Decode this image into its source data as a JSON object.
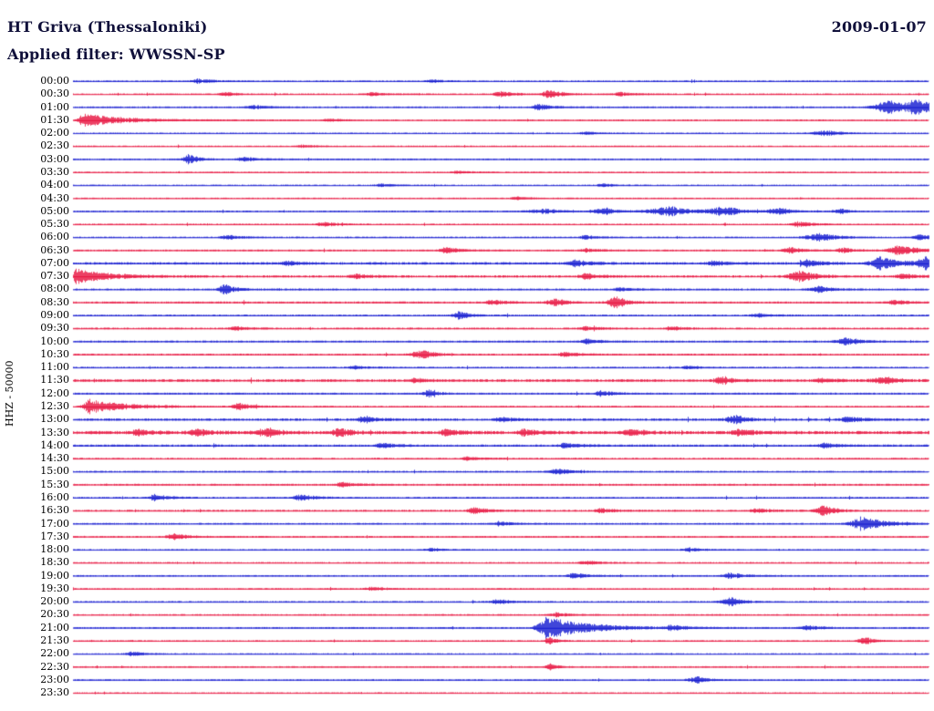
{
  "header": {
    "station_title": "HT Griva (Thessaloniki)",
    "date": "2009-01-07",
    "filter_line": "Applied filter: WWSSN-SP"
  },
  "axis": {
    "left_label": "HHZ - 50000"
  },
  "colors": {
    "blue": "#0008cc",
    "red": "#e60030",
    "header_text": "#10103a",
    "background": "#ffffff"
  },
  "chart_data": {
    "type": "line",
    "subtype": "helicorder-seismogram",
    "title": "HT Griva (Thessaloniki)",
    "date": "2009-01-07",
    "filter": "WWSSN-SP",
    "channel_scale_label": "HHZ - 50000",
    "minutes_per_row": 30,
    "rows_count": 48,
    "trace_color_pattern": [
      "blue",
      "red"
    ],
    "rows": [
      {
        "time": "00:00",
        "color": "blue",
        "noise": 1.0,
        "events": [
          {
            "x": 0.147,
            "a": 2.5
          },
          {
            "x": 0.42,
            "a": 1.5
          }
        ]
      },
      {
        "time": "00:30",
        "color": "red",
        "noise": 1.0,
        "events": [
          {
            "x": 0.18,
            "a": 2.5,
            "d": 10
          },
          {
            "x": 0.35,
            "a": 2
          },
          {
            "x": 0.5,
            "a": 3
          },
          {
            "x": 0.556,
            "a": 4.5
          },
          {
            "x": 0.64,
            "a": 2
          }
        ]
      },
      {
        "time": "01:00",
        "color": "blue",
        "noise": 1.0,
        "events": [
          {
            "x": 0.21,
            "a": 2.5
          },
          {
            "x": 0.545,
            "a": 3.5
          },
          {
            "x": 0.955,
            "a": 7,
            "r": 12,
            "d": 30
          },
          {
            "x": 0.985,
            "a": 6,
            "r": 6,
            "d": 20
          }
        ]
      },
      {
        "time": "01:30",
        "color": "red",
        "noise": 1.0,
        "events": [
          {
            "x": 0.012,
            "a": 7,
            "r": 4,
            "d": 45
          },
          {
            "x": 0.3,
            "a": 1.5
          }
        ]
      },
      {
        "time": "02:00",
        "color": "blue",
        "noise": 0.9,
        "events": [
          {
            "x": 0.6,
            "a": 1.5
          },
          {
            "x": 0.88,
            "a": 3,
            "r": 10,
            "d": 18
          }
        ]
      },
      {
        "time": "02:30",
        "color": "red",
        "noise": 0.9,
        "events": [
          {
            "x": 0.27,
            "a": 1.5
          }
        ]
      },
      {
        "time": "03:00",
        "color": "blue",
        "noise": 1.0,
        "events": [
          {
            "x": 0.135,
            "a": 5.5,
            "r": 4,
            "d": 10
          },
          {
            "x": 0.2,
            "a": 2.5
          }
        ]
      },
      {
        "time": "03:30",
        "color": "red",
        "noise": 0.9,
        "events": [
          {
            "x": 0.45,
            "a": 1.5
          }
        ]
      },
      {
        "time": "04:00",
        "color": "blue",
        "noise": 0.9,
        "events": [
          {
            "x": 0.36,
            "a": 1.5
          },
          {
            "x": 0.62,
            "a": 1.5
          }
        ]
      },
      {
        "time": "04:30",
        "color": "red",
        "noise": 0.9,
        "events": [
          {
            "x": 0.52,
            "a": 1.5
          }
        ]
      },
      {
        "time": "05:00",
        "color": "blue",
        "noise": 1.0,
        "events": [
          {
            "x": 0.555,
            "a": 2.5,
            "r": 15,
            "d": 15
          },
          {
            "x": 0.625,
            "a": 3.5,
            "r": 12,
            "d": 12
          },
          {
            "x": 0.7,
            "a": 5,
            "r": 18,
            "d": 18
          },
          {
            "x": 0.765,
            "a": 5,
            "r": 15,
            "d": 15
          },
          {
            "x": 0.83,
            "a": 3.5,
            "r": 12,
            "d": 12
          },
          {
            "x": 0.9,
            "a": 2.5,
            "r": 8,
            "d": 8
          }
        ]
      },
      {
        "time": "05:30",
        "color": "red",
        "noise": 1.0,
        "events": [
          {
            "x": 0.293,
            "a": 2.5
          },
          {
            "x": 0.848,
            "a": 3
          }
        ]
      },
      {
        "time": "06:00",
        "color": "blue",
        "noise": 1.0,
        "events": [
          {
            "x": 0.18,
            "a": 2.5
          },
          {
            "x": 0.6,
            "a": 2
          },
          {
            "x": 0.875,
            "a": 4.5,
            "r": 12,
            "d": 18
          },
          {
            "x": 0.99,
            "a": 3.5
          }
        ]
      },
      {
        "time": "06:30",
        "color": "red",
        "noise": 1.1,
        "events": [
          {
            "x": 0.437,
            "a": 3.5
          },
          {
            "x": 0.6,
            "a": 2
          },
          {
            "x": 0.837,
            "a": 3.5
          },
          {
            "x": 0.9,
            "a": 2.5
          },
          {
            "x": 0.965,
            "a": 6,
            "r": 8,
            "d": 20
          }
        ]
      },
      {
        "time": "07:00",
        "color": "blue",
        "noise": 1.7,
        "events": [
          {
            "x": 0.25,
            "a": 2
          },
          {
            "x": 0.586,
            "a": 3.5
          },
          {
            "x": 0.75,
            "a": 2.5
          },
          {
            "x": 0.858,
            "a": 4
          },
          {
            "x": 0.945,
            "a": 7,
            "r": 8,
            "d": 20
          },
          {
            "x": 0.995,
            "a": 7,
            "r": 5,
            "d": 10
          }
        ]
      },
      {
        "time": "07:30",
        "color": "red",
        "noise": 1.5,
        "events": [
          {
            "x": 0.004,
            "a": 8,
            "r": 3,
            "d": 35
          },
          {
            "x": 0.33,
            "a": 2.5
          },
          {
            "x": 0.6,
            "a": 3
          },
          {
            "x": 0.852,
            "a": 6,
            "r": 10,
            "d": 15
          },
          {
            "x": 0.97,
            "a": 3
          }
        ]
      },
      {
        "time": "08:00",
        "color": "blue",
        "noise": 1.2,
        "events": [
          {
            "x": 0.176,
            "a": 6,
            "r": 4,
            "d": 12
          },
          {
            "x": 0.64,
            "a": 2
          },
          {
            "x": 0.874,
            "a": 3.5,
            "r": 8,
            "d": 12
          }
        ]
      },
      {
        "time": "08:30",
        "color": "red",
        "noise": 1.3,
        "events": [
          {
            "x": 0.49,
            "a": 2.5
          },
          {
            "x": 0.565,
            "a": 4.5,
            "r": 7,
            "d": 10
          },
          {
            "x": 0.635,
            "a": 6.5,
            "r": 6,
            "d": 12
          },
          {
            "x": 0.96,
            "a": 2.5
          }
        ]
      },
      {
        "time": "09:00",
        "color": "blue",
        "noise": 1.2,
        "events": [
          {
            "x": 0.453,
            "a": 4.5,
            "r": 5,
            "d": 10
          },
          {
            "x": 0.8,
            "a": 2
          }
        ]
      },
      {
        "time": "09:30",
        "color": "red",
        "noise": 1.2,
        "events": [
          {
            "x": 0.19,
            "a": 2
          },
          {
            "x": 0.6,
            "a": 2.5
          },
          {
            "x": 0.7,
            "a": 2
          }
        ]
      },
      {
        "time": "10:00",
        "color": "blue",
        "noise": 1.2,
        "events": [
          {
            "x": 0.6,
            "a": 2.5
          },
          {
            "x": 0.905,
            "a": 4.5,
            "r": 8,
            "d": 14
          }
        ]
      },
      {
        "time": "10:30",
        "color": "red",
        "noise": 1.2,
        "events": [
          {
            "x": 0.41,
            "a": 4.5,
            "r": 9,
            "d": 12
          },
          {
            "x": 0.575,
            "a": 2.5
          }
        ]
      },
      {
        "time": "11:00",
        "color": "blue",
        "noise": 1.1,
        "events": [
          {
            "x": 0.33,
            "a": 1.8
          },
          {
            "x": 0.72,
            "a": 1.8
          }
        ]
      },
      {
        "time": "11:30",
        "color": "red",
        "noise": 1.8,
        "events": [
          {
            "x": 0.4,
            "a": 2
          },
          {
            "x": 0.757,
            "a": 3.5
          },
          {
            "x": 0.874,
            "a": 2.5
          },
          {
            "x": 0.95,
            "a": 3.5,
            "r": 10,
            "d": 14
          }
        ]
      },
      {
        "time": "12:00",
        "color": "blue",
        "noise": 1.2,
        "events": [
          {
            "x": 0.416,
            "a": 4.5,
            "r": 4,
            "d": 8
          },
          {
            "x": 0.618,
            "a": 3
          }
        ]
      },
      {
        "time": "12:30",
        "color": "red",
        "noise": 1.1,
        "events": [
          {
            "x": 0.02,
            "a": 8,
            "r": 5,
            "d": 38
          },
          {
            "x": 0.194,
            "a": 3.5
          }
        ]
      },
      {
        "time": "13:00",
        "color": "blue",
        "noise": 1.6,
        "events": [
          {
            "x": 0.34,
            "a": 3.5
          },
          {
            "x": 0.5,
            "a": 2.5
          },
          {
            "x": 0.775,
            "a": 4.5,
            "r": 8,
            "d": 12
          },
          {
            "x": 0.906,
            "a": 3.5
          }
        ]
      },
      {
        "time": "13:30",
        "color": "red",
        "noise": 2.2,
        "events": [
          {
            "x": 0.075,
            "a": 3.5
          },
          {
            "x": 0.144,
            "a": 3.5
          },
          {
            "x": 0.23,
            "a": 4.5,
            "r": 10,
            "d": 12
          },
          {
            "x": 0.315,
            "a": 4.5,
            "r": 8,
            "d": 10
          },
          {
            "x": 0.437,
            "a": 3.5
          },
          {
            "x": 0.528,
            "a": 3.5
          },
          {
            "x": 0.65,
            "a": 3.5
          },
          {
            "x": 0.778,
            "a": 3.5
          }
        ]
      },
      {
        "time": "14:00",
        "color": "blue",
        "noise": 1.5,
        "events": [
          {
            "x": 0.362,
            "a": 2.5
          },
          {
            "x": 0.576,
            "a": 2.5
          },
          {
            "x": 0.879,
            "a": 2.5
          }
        ]
      },
      {
        "time": "14:30",
        "color": "red",
        "noise": 1.2,
        "events": [
          {
            "x": 0.46,
            "a": 1.8
          }
        ]
      },
      {
        "time": "15:00",
        "color": "blue",
        "noise": 1.1,
        "events": [
          {
            "x": 0.565,
            "a": 3.5
          }
        ]
      },
      {
        "time": "15:30",
        "color": "red",
        "noise": 1.2,
        "events": [
          {
            "x": 0.315,
            "a": 2.5
          }
        ]
      },
      {
        "time": "16:00",
        "color": "blue",
        "noise": 1.1,
        "events": [
          {
            "x": 0.096,
            "a": 3.5
          },
          {
            "x": 0.266,
            "a": 3.5
          }
        ]
      },
      {
        "time": "16:30",
        "color": "red",
        "noise": 1.3,
        "events": [
          {
            "x": 0.469,
            "a": 3.5
          },
          {
            "x": 0.618,
            "a": 2.5
          },
          {
            "x": 0.8,
            "a": 2.5
          },
          {
            "x": 0.878,
            "a": 5.5,
            "r": 6,
            "d": 12
          }
        ]
      },
      {
        "time": "17:00",
        "color": "blue",
        "noise": 1.1,
        "events": [
          {
            "x": 0.5,
            "a": 2
          },
          {
            "x": 0.925,
            "a": 7,
            "r": 10,
            "d": 25
          }
        ]
      },
      {
        "time": "17:30",
        "color": "red",
        "noise": 1.1,
        "events": [
          {
            "x": 0.117,
            "a": 3.5
          }
        ]
      },
      {
        "time": "18:00",
        "color": "blue",
        "noise": 1.0,
        "events": [
          {
            "x": 0.42,
            "a": 1.8
          },
          {
            "x": 0.72,
            "a": 2
          }
        ]
      },
      {
        "time": "18:30",
        "color": "red",
        "noise": 1.0,
        "events": [
          {
            "x": 0.6,
            "a": 2.2
          }
        ]
      },
      {
        "time": "19:00",
        "color": "blue",
        "noise": 1.0,
        "events": [
          {
            "x": 0.586,
            "a": 3
          },
          {
            "x": 0.768,
            "a": 3.5
          }
        ]
      },
      {
        "time": "19:30",
        "color": "red",
        "noise": 1.0,
        "events": [
          {
            "x": 0.35,
            "a": 1.8
          }
        ]
      },
      {
        "time": "20:00",
        "color": "blue",
        "noise": 1.1,
        "events": [
          {
            "x": 0.496,
            "a": 2.5
          },
          {
            "x": 0.77,
            "a": 4.5,
            "r": 8,
            "d": 12
          }
        ]
      },
      {
        "time": "20:30",
        "color": "red",
        "noise": 1.0,
        "events": [
          {
            "x": 0.565,
            "a": 2.2
          }
        ]
      },
      {
        "time": "21:00",
        "color": "blue",
        "noise": 1.1,
        "events": [
          {
            "x": 0.553,
            "a": 12,
            "r": 7,
            "d": 45
          },
          {
            "x": 0.7,
            "a": 2.5
          },
          {
            "x": 0.858,
            "a": 2.5
          }
        ]
      },
      {
        "time": "21:30",
        "color": "red",
        "noise": 1.0,
        "events": [
          {
            "x": 0.556,
            "a": 4.5,
            "r": 3,
            "d": 8
          },
          {
            "x": 0.927,
            "a": 4,
            "r": 6,
            "d": 10
          }
        ]
      },
      {
        "time": "22:00",
        "color": "blue",
        "noise": 0.9,
        "events": [
          {
            "x": 0.07,
            "a": 2.5
          }
        ]
      },
      {
        "time": "22:30",
        "color": "red",
        "noise": 1.0,
        "events": [
          {
            "x": 0.557,
            "a": 4,
            "r": 3,
            "d": 8
          }
        ]
      },
      {
        "time": "23:00",
        "color": "blue",
        "noise": 1.0,
        "events": [
          {
            "x": 0.73,
            "a": 4,
            "r": 7,
            "d": 10
          }
        ]
      },
      {
        "time": "23:30",
        "color": "red",
        "noise": 0.9,
        "events": []
      }
    ]
  }
}
